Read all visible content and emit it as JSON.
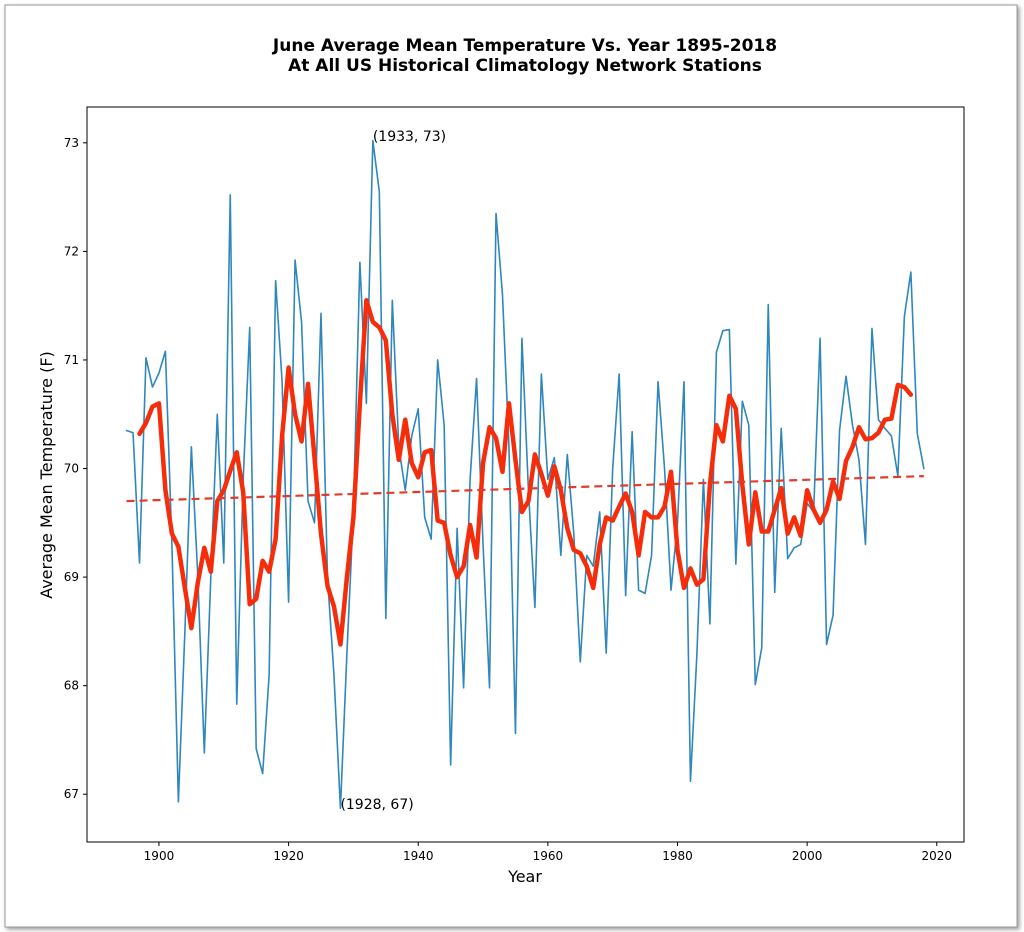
{
  "chart_data": {
    "type": "line",
    "title": [
      "June Average Mean Temperature Vs. Year 1895-2018",
      "At All US Historical Climatology Network Stations"
    ],
    "x_label": "Year",
    "y_label": "Average Mean Temperature (F)",
    "x": [
      1895,
      1896,
      1897,
      1898,
      1899,
      1900,
      1901,
      1902,
      1903,
      1904,
      1905,
      1906,
      1907,
      1908,
      1909,
      1910,
      1911,
      1912,
      1913,
      1914,
      1915,
      1916,
      1917,
      1918,
      1919,
      1920,
      1921,
      1922,
      1923,
      1924,
      1925,
      1926,
      1927,
      1928,
      1929,
      1930,
      1931,
      1932,
      1933,
      1934,
      1935,
      1936,
      1937,
      1938,
      1939,
      1940,
      1941,
      1942,
      1943,
      1944,
      1945,
      1946,
      1947,
      1948,
      1949,
      1950,
      1951,
      1952,
      1953,
      1954,
      1955,
      1956,
      1957,
      1958,
      1959,
      1960,
      1961,
      1962,
      1963,
      1964,
      1965,
      1966,
      1967,
      1968,
      1969,
      1970,
      1971,
      1972,
      1973,
      1974,
      1975,
      1976,
      1977,
      1978,
      1979,
      1980,
      1981,
      1982,
      1983,
      1984,
      1985,
      1986,
      1987,
      1988,
      1989,
      1990,
      1991,
      1992,
      1993,
      1994,
      1995,
      1996,
      1997,
      1998,
      1999,
      2000,
      2001,
      2002,
      2003,
      2004,
      2005,
      2006,
      2007,
      2008,
      2009,
      2010,
      2011,
      2012,
      2013,
      2014,
      2015,
      2016,
      2017,
      2018
    ],
    "series": [
      {
        "color": "#2f87bb",
        "width": 1.6,
        "values": [
          70.35,
          70.33,
          69.13,
          71.02,
          70.75,
          70.88,
          71.08,
          69.3,
          66.93,
          68.5,
          70.2,
          69.0,
          67.38,
          69.0,
          70.5,
          69.13,
          72.52,
          67.83,
          69.9,
          71.3,
          67.42,
          67.19,
          68.1,
          71.73,
          70.8,
          68.77,
          71.92,
          71.35,
          69.7,
          69.5,
          71.43,
          69.0,
          68.1,
          66.87,
          68.3,
          69.6,
          71.9,
          70.6,
          73.02,
          72.55,
          68.62,
          71.55,
          70.2,
          69.8,
          70.3,
          70.55,
          69.55,
          69.35,
          71.0,
          70.4,
          67.27,
          69.45,
          67.98,
          69.9,
          70.83,
          69.3,
          67.98,
          72.35,
          71.6,
          70.2,
          67.56,
          71.2,
          69.8,
          68.72,
          70.87,
          69.9,
          70.1,
          69.2,
          70.13,
          69.4,
          68.22,
          69.2,
          69.1,
          69.6,
          68.3,
          70.0,
          70.87,
          68.83,
          70.34,
          68.88,
          68.85,
          69.2,
          70.8,
          70.0,
          68.88,
          69.5,
          70.8,
          67.12,
          68.3,
          69.9,
          68.57,
          71.07,
          71.27,
          71.28,
          69.12,
          70.62,
          70.4,
          68.01,
          68.35,
          71.51,
          68.86,
          70.37,
          69.17,
          69.27,
          69.3,
          69.68,
          69.6,
          71.2,
          68.38,
          68.65,
          70.35,
          70.85,
          70.4,
          70.08,
          69.3,
          71.29,
          70.45,
          70.37,
          70.3,
          69.93,
          71.4,
          71.81,
          70.32,
          70.0
        ]
      },
      {
        "color": "#f52d0a",
        "width": 4.5,
        "values": [
          null,
          null,
          70.32,
          70.42,
          70.57,
          70.6,
          69.8,
          69.4,
          69.28,
          68.9,
          68.53,
          68.95,
          69.27,
          69.05,
          69.7,
          69.8,
          69.98,
          70.15,
          69.78,
          68.75,
          68.8,
          69.15,
          69.05,
          69.35,
          70.3,
          70.93,
          70.5,
          70.25,
          70.78,
          70.1,
          69.4,
          68.92,
          68.73,
          68.38,
          69.0,
          69.55,
          70.6,
          71.55,
          71.35,
          71.3,
          71.18,
          70.5,
          70.08,
          70.45,
          70.05,
          69.92,
          70.15,
          70.17,
          69.52,
          69.5,
          69.2,
          69.0,
          69.1,
          69.48,
          69.18,
          70.05,
          70.38,
          70.28,
          69.97,
          70.6,
          70.08,
          69.6,
          69.7,
          70.13,
          69.95,
          69.75,
          70.02,
          69.8,
          69.45,
          69.25,
          69.22,
          69.1,
          68.9,
          69.3,
          69.55,
          69.52,
          69.65,
          69.77,
          69.6,
          69.2,
          69.6,
          69.55,
          69.55,
          69.65,
          69.97,
          69.25,
          68.9,
          69.08,
          68.93,
          68.98,
          69.85,
          70.4,
          70.25,
          70.67,
          70.55,
          69.85,
          69.3,
          69.78,
          69.42,
          69.42,
          69.62,
          69.82,
          69.4,
          69.55,
          69.38,
          69.8,
          69.62,
          69.5,
          69.62,
          69.88,
          69.72,
          70.07,
          70.2,
          70.38,
          70.27,
          70.28,
          70.33,
          70.45,
          70.46,
          70.77,
          70.75,
          70.68,
          null,
          null
        ]
      }
    ],
    "trend": {
      "color": "#e23b2b",
      "x": [
        1895,
        2018
      ],
      "values": [
        69.7,
        69.93
      ]
    },
    "annotations": [
      {
        "text": "(1933, 73)",
        "x": 1933,
        "y": 73
      },
      {
        "text": "(1928, 67)",
        "x": 1928,
        "y": 67
      }
    ],
    "xlim": [
      1888.9,
      2024.2
    ],
    "ylim": [
      66.56,
      73.33
    ],
    "xticks": [
      1900,
      1920,
      1940,
      1960,
      1980,
      2000,
      2020
    ],
    "yticks": [
      67,
      68,
      69,
      70,
      71,
      72,
      73
    ]
  }
}
